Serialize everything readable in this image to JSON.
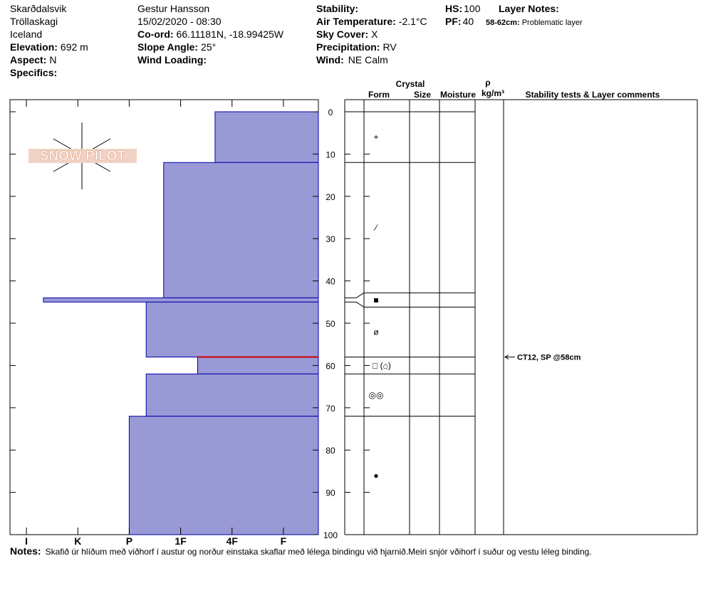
{
  "header": {
    "site": [
      "Skarðdalsvik",
      "Tröllaskagi",
      "Iceland"
    ],
    "elevation": {
      "label": "Elevation:",
      "value": "692 m"
    },
    "aspect": {
      "label": "Aspect:",
      "value": "N"
    },
    "specifics": {
      "label": "Specifics:"
    },
    "observer": "Gestur Hansson",
    "datetime": "15/02/2020 - 08:30",
    "coord": {
      "label": "Co-ord:",
      "value": "66.11181N, -18.99425W"
    },
    "slope": {
      "label": "Slope Angle:",
      "value": "25°"
    },
    "wind_loading": {
      "label": "Wind Loading:"
    },
    "stability": {
      "label": "Stability:"
    },
    "air_temp": {
      "label": "Air Temperature:",
      "value": "-2.1°C"
    },
    "sky": {
      "label": "Sky Cover:",
      "value": "X"
    },
    "precip": {
      "label": "Precipitation:",
      "value": "RV"
    },
    "wind": {
      "label": "Wind:",
      "value": "NE Calm"
    },
    "hs": {
      "label": "HS:",
      "value": "100"
    },
    "pf": {
      "label": "PF:",
      "value": "40"
    },
    "layer_notes": {
      "label": "Layer Notes:",
      "items": [
        {
          "label": "58-62cm:",
          "text": "Problematic layer"
        }
      ]
    }
  },
  "logo": "SNOW PILOT",
  "notes": {
    "label": "Notes:",
    "text": "Skafið úr hlíðum með viðhorf í austur og norður einstaka skaflar með lélega bindingu við hjarnið.Meiri snjór vðihorf í suður og vestu léleg binding."
  },
  "chart_data": {
    "type": "snow-profile",
    "xlim": [
      6.32,
      0.32
    ],
    "xticks": [
      {
        "value": 6,
        "label": "I"
      },
      {
        "value": 5,
        "label": "K"
      },
      {
        "value": 4,
        "label": "P"
      },
      {
        "value": 3,
        "label": "1F"
      },
      {
        "value": 2,
        "label": "4F"
      },
      {
        "value": 1,
        "label": "F"
      }
    ],
    "ylim": [
      0,
      100
    ],
    "yticks": [
      0,
      10,
      20,
      30,
      40,
      50,
      60,
      70,
      80,
      90,
      100
    ],
    "color": "#9999d6",
    "edge_color": "#0000aa",
    "critical_color": "#cc0000",
    "layers": [
      {
        "top": 0,
        "bottom": 12,
        "hardness": 2.33,
        "form": "+"
      },
      {
        "top": 12,
        "bottom": 44,
        "hardness": 3.33,
        "form": "⁄"
      },
      {
        "top": 44,
        "bottom": 45,
        "hardness": 5.67,
        "form": "■"
      },
      {
        "top": 45,
        "bottom": 58,
        "hardness": 3.67,
        "form": "ø"
      },
      {
        "top": 58,
        "bottom": 62,
        "hardness": 2.67,
        "form": "□ (⌂)",
        "critical": true
      },
      {
        "top": 62,
        "bottom": 72,
        "hardness": 3.67,
        "form": "◎◎"
      },
      {
        "top": 72,
        "bottom": 100,
        "hardness": 4,
        "form": "●"
      }
    ],
    "crystal_header": "Crystal",
    "columns": [
      "Form",
      "Size",
      "Moisture"
    ],
    "density_header": [
      "ρ",
      "kg/m³"
    ],
    "comments_header": "Stability tests & Layer comments",
    "stability_tests": [
      {
        "depth": 58,
        "label": "CT12, SP @58cm"
      }
    ]
  }
}
